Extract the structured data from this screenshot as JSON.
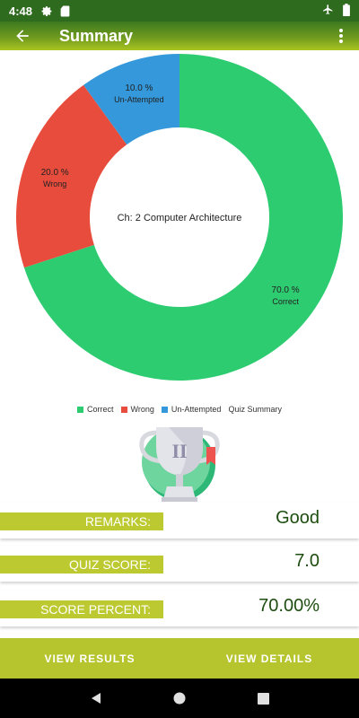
{
  "status_bar": {
    "time": "4:48"
  },
  "app_bar": {
    "title": "Summary"
  },
  "chart_data": {
    "type": "pie",
    "variant": "donut",
    "center_text": "Ch: 2 Computer Architecture",
    "slices": [
      {
        "name": "Correct",
        "value": 70.0,
        "label": "70.0 %",
        "color": "#2ecc71"
      },
      {
        "name": "Wrong",
        "value": 20.0,
        "label": "20.0 %",
        "color": "#e74c3c"
      },
      {
        "name": "Un-Attempted",
        "value": 10.0,
        "label": "10.0 %",
        "color": "#3498db"
      }
    ],
    "legend_title": "Quiz Summary",
    "legend_position": "bottom-center"
  },
  "results": {
    "remarks_label": "REMARKS:",
    "remarks_value": "Good",
    "score_label": "QUIZ SCORE:",
    "score_value": "7.0",
    "percent_label": "SCORE PERCENT:",
    "percent_value": "70.00%"
  },
  "actions": {
    "view_results": "VIEW RESULTS",
    "view_details": "VIEW DETAILS"
  },
  "colors": {
    "accent": "#b6c42d",
    "app_bar_dark": "#2e6b1e",
    "value_text": "#1e4d10"
  },
  "icons": {
    "back": "arrow-left-icon",
    "more": "more-vert-icon",
    "trophy": "trophy-icon"
  }
}
